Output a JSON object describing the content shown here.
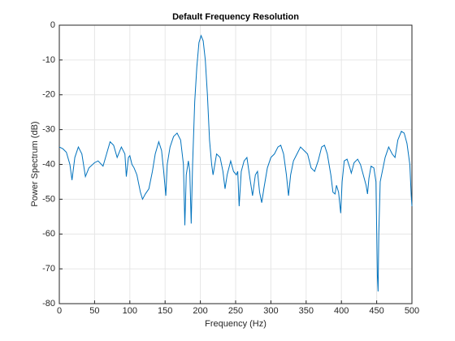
{
  "chart_data": {
    "type": "line",
    "title": "Default Frequency Resolution",
    "xlabel": "Frequency (Hz)",
    "ylabel": "Power Spectrum (dB)",
    "x": [
      0,
      5,
      10,
      15,
      18,
      22,
      27,
      32,
      37,
      42,
      50,
      55,
      62,
      67,
      72,
      77,
      82,
      88,
      93,
      95,
      98,
      100,
      103,
      106,
      110,
      115,
      118,
      122,
      127,
      132,
      136,
      141,
      145,
      148,
      151,
      153,
      157,
      162,
      167,
      172,
      176,
      178,
      180,
      183,
      185,
      187,
      189,
      192,
      195,
      198,
      201,
      204,
      207,
      210,
      213,
      216,
      218,
      223,
      228,
      232,
      235,
      238,
      243,
      247,
      251,
      253,
      255,
      258,
      262,
      266,
      271,
      274,
      278,
      281,
      284,
      287,
      290,
      295,
      300,
      305,
      310,
      314,
      318,
      322,
      325,
      328,
      332,
      337,
      342,
      347,
      352,
      357,
      362,
      367,
      372,
      376,
      380,
      385,
      388,
      391,
      393,
      396,
      399,
      401,
      404,
      408,
      412,
      414,
      418,
      423,
      427,
      431,
      435,
      437,
      439,
      442,
      446,
      449,
      451,
      452,
      453,
      455,
      458,
      462,
      467,
      472,
      476,
      480,
      485,
      489,
      493,
      497,
      499,
      500
    ],
    "values": [
      -35,
      -35.5,
      -36.5,
      -40,
      -44.5,
      -38,
      -35,
      -37,
      -43.5,
      -41,
      -39.5,
      -39,
      -40.5,
      -37,
      -33.5,
      -34.5,
      -38,
      -35,
      -37,
      -43.5,
      -38,
      -37.5,
      -40,
      -41,
      -43,
      -48,
      -50,
      -48.5,
      -47,
      -42,
      -37,
      -33.5,
      -36,
      -42,
      -49,
      -40,
      -35,
      -32,
      -31,
      -33,
      -40,
      -57.5,
      -43,
      -39,
      -42,
      -57,
      -40,
      -22,
      -12,
      -5,
      -3,
      -4.5,
      -10,
      -20,
      -33,
      -40,
      -43,
      -37,
      -38,
      -42,
      -47,
      -43,
      -39,
      -42,
      -43,
      -42,
      -52,
      -42,
      -39,
      -38,
      -45,
      -49,
      -43,
      -42,
      -48,
      -51,
      -47,
      -41,
      -38,
      -37,
      -35,
      -34.5,
      -37,
      -43,
      -49,
      -43,
      -39,
      -37,
      -35,
      -36,
      -37,
      -41,
      -42,
      -39,
      -35,
      -34.5,
      -37,
      -43,
      -48,
      -48.5,
      -46,
      -48,
      -54,
      -45,
      -39,
      -38.5,
      -41,
      -42.5,
      -39.5,
      -38.5,
      -40,
      -43,
      -46,
      -48.5,
      -44,
      -40.5,
      -41,
      -45,
      -72,
      -76.5,
      -60,
      -45,
      -42,
      -38,
      -35,
      -37,
      -38,
      -33,
      -30.5,
      -31,
      -34,
      -40,
      -49,
      -52
    ],
    "color": "#0072bd",
    "xlim": [
      0,
      500
    ],
    "ylim": [
      -80,
      0
    ],
    "xticks": [
      0,
      50,
      100,
      150,
      200,
      250,
      300,
      350,
      400,
      450,
      500
    ],
    "yticks": [
      -80,
      -70,
      -60,
      -50,
      -40,
      -30,
      -20,
      -10,
      0
    ],
    "grid": true
  }
}
